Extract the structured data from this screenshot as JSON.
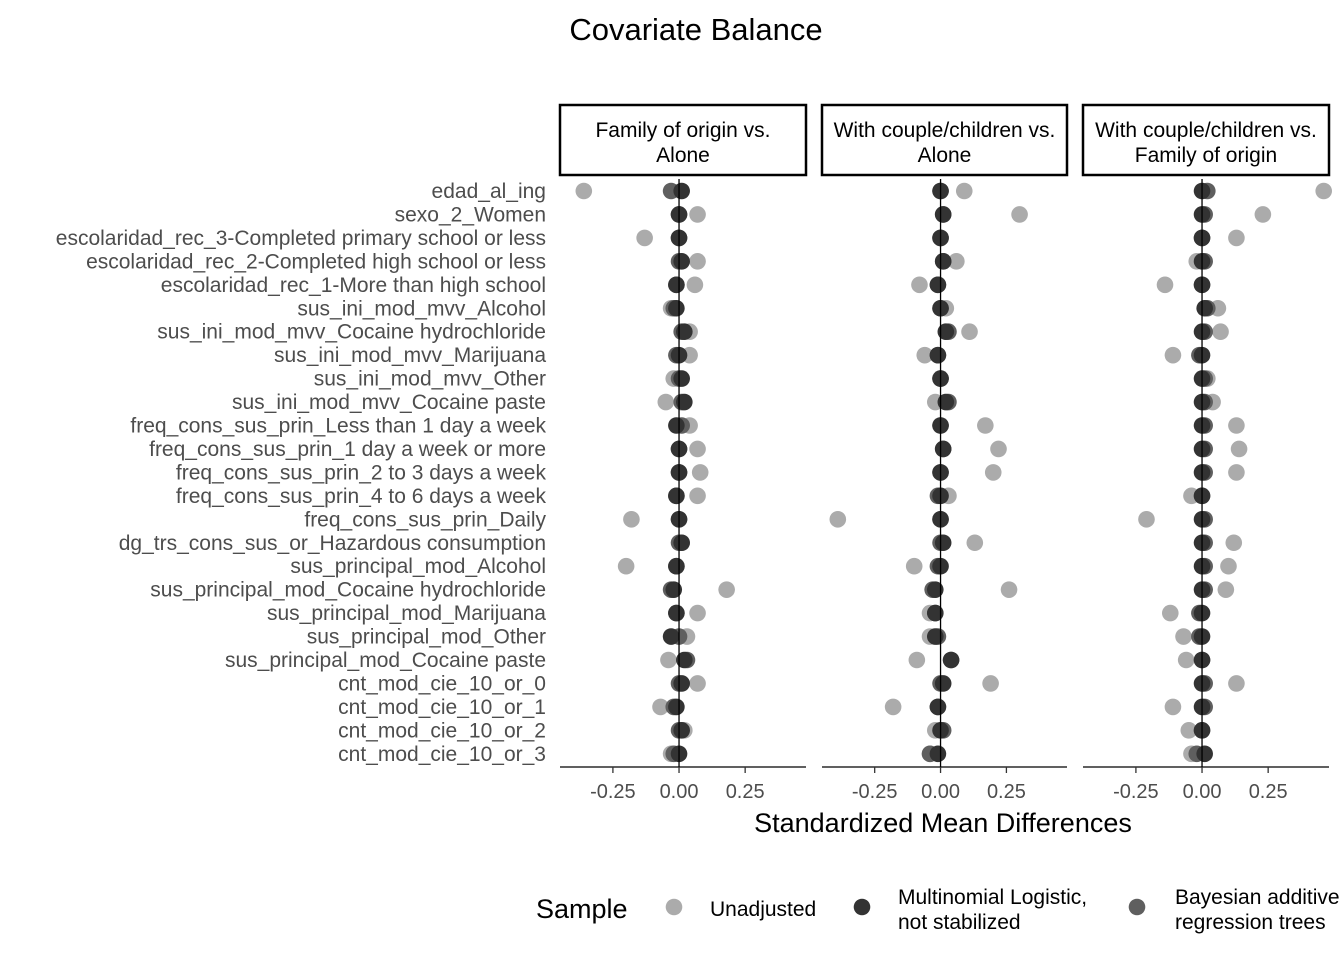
{
  "chart_data": {
    "type": "scatter",
    "title": "Covariate Balance",
    "xlabel": "Standardized Mean Differences",
    "xlim": [
      -0.45,
      0.48
    ],
    "xticks": [
      -0.25,
      0.0,
      0.25
    ],
    "xtick_labels": [
      "-0.25",
      "0.00",
      "0.25"
    ],
    "reference_line": 0,
    "grid": false,
    "legend_position": "bottom",
    "legend_title": "Sample",
    "colors": {
      "Unadjusted": "#ababab",
      "Multinomial Logistic, not stabilized": "#333333",
      "Bayesian additive regression trees": "#5f5f5f"
    },
    "covariates": [
      "edad_al_ing",
      "sexo_2_Women",
      "escolaridad_rec_3-Completed primary school or less",
      "escolaridad_rec_2-Completed high school or less",
      "escolaridad_rec_1-More than high school",
      "sus_ini_mod_mvv_Alcohol",
      "sus_ini_mod_mvv_Cocaine hydrochloride",
      "sus_ini_mod_mvv_Marijuana",
      "sus_ini_mod_mvv_Other",
      "sus_ini_mod_mvv_Cocaine paste",
      "freq_cons_sus_prin_Less than 1 day a week",
      "freq_cons_sus_prin_1 day a week or more",
      "freq_cons_sus_prin_2 to 3 days a week",
      "freq_cons_sus_prin_4 to 6 days a week",
      "freq_cons_sus_prin_Daily",
      "dg_trs_cons_sus_or_Hazardous consumption",
      "sus_principal_mod_Alcohol",
      "sus_principal_mod_Cocaine hydrochloride",
      "sus_principal_mod_Marijuana",
      "sus_principal_mod_Other",
      "sus_principal_mod_Cocaine paste",
      "cnt_mod_cie_10_or_0",
      "cnt_mod_cie_10_or_1",
      "cnt_mod_cie_10_or_2",
      "cnt_mod_cie_10_or_3"
    ],
    "facets": [
      {
        "label_line1": "Family of origin vs.",
        "label_line2": "Alone",
        "series": [
          {
            "name": "Unadjusted",
            "values": [
              -0.36,
              0.07,
              -0.13,
              0.07,
              0.06,
              -0.03,
              0.04,
              0.04,
              -0.02,
              -0.05,
              0.04,
              0.07,
              0.08,
              0.07,
              -0.18,
              0.01,
              -0.2,
              0.18,
              0.07,
              0.03,
              -0.04,
              0.07,
              -0.07,
              0.02,
              -0.03
            ]
          },
          {
            "name": "Multinomial Logistic, not stabilized",
            "values": [
              0.01,
              0.0,
              0.0,
              0.01,
              -0.01,
              -0.01,
              0.02,
              0.0,
              0.01,
              0.02,
              -0.01,
              0.0,
              0.0,
              -0.01,
              0.0,
              0.01,
              -0.01,
              -0.02,
              -0.01,
              -0.03,
              0.02,
              0.01,
              -0.01,
              0.01,
              0.0
            ]
          },
          {
            "name": "Bayesian additive regression trees",
            "values": [
              -0.03,
              0.0,
              0.0,
              0.0,
              -0.01,
              -0.02,
              0.01,
              -0.01,
              0.0,
              0.01,
              0.01,
              0.0,
              0.0,
              -0.01,
              0.0,
              0.0,
              -0.01,
              -0.03,
              -0.01,
              0.0,
              0.03,
              0.0,
              -0.02,
              0.0,
              -0.02
            ]
          }
        ]
      },
      {
        "label_line1": "With couple/children vs.",
        "label_line2": "Alone",
        "series": [
          {
            "name": "Unadjusted",
            "values": [
              0.09,
              0.3,
              0.0,
              0.06,
              -0.08,
              0.02,
              0.11,
              -0.06,
              0.0,
              -0.02,
              0.17,
              0.22,
              0.2,
              0.03,
              -0.39,
              0.13,
              -0.1,
              0.26,
              -0.04,
              -0.04,
              -0.09,
              0.19,
              -0.18,
              -0.02,
              -0.04
            ]
          },
          {
            "name": "Multinomial Logistic, not stabilized",
            "values": [
              0.0,
              0.01,
              0.0,
              0.01,
              -0.01,
              0.0,
              0.02,
              -0.01,
              0.0,
              0.02,
              0.0,
              0.01,
              0.0,
              0.0,
              0.0,
              0.01,
              0.0,
              -0.02,
              -0.02,
              -0.02,
              0.04,
              0.01,
              -0.01,
              0.0,
              -0.01
            ]
          },
          {
            "name": "Bayesian additive regression trees",
            "values": [
              0.0,
              0.01,
              0.0,
              0.01,
              -0.01,
              0.0,
              0.03,
              -0.01,
              0.0,
              0.03,
              0.0,
              0.01,
              0.0,
              -0.01,
              0.0,
              0.0,
              -0.01,
              -0.03,
              -0.02,
              -0.01,
              0.04,
              0.0,
              -0.01,
              0.01,
              -0.04
            ]
          }
        ]
      },
      {
        "label_line1": "With couple/children vs.",
        "label_line2": "Family of origin",
        "series": [
          {
            "name": "Unadjusted",
            "values": [
              0.46,
              0.23,
              0.13,
              -0.02,
              -0.14,
              0.06,
              0.07,
              -0.11,
              0.02,
              0.04,
              0.13,
              0.14,
              0.13,
              -0.04,
              -0.21,
              0.12,
              0.1,
              0.09,
              -0.12,
              -0.07,
              -0.06,
              0.13,
              -0.11,
              -0.05,
              -0.04
            ]
          },
          {
            "name": "Multinomial Logistic, not stabilized",
            "values": [
              0.0,
              0.0,
              0.0,
              0.0,
              0.0,
              0.01,
              0.0,
              0.0,
              0.0,
              0.0,
              0.0,
              0.0,
              0.0,
              0.0,
              0.0,
              0.0,
              0.0,
              0.0,
              0.0,
              0.0,
              0.0,
              0.0,
              0.0,
              0.0,
              0.01
            ]
          },
          {
            "name": "Bayesian additive regression trees",
            "values": [
              0.02,
              0.01,
              0.0,
              0.01,
              0.0,
              0.02,
              0.01,
              -0.01,
              0.01,
              0.01,
              0.01,
              0.01,
              0.01,
              0.0,
              0.01,
              0.01,
              0.01,
              0.01,
              -0.01,
              -0.01,
              0.0,
              0.01,
              0.01,
              0.0,
              -0.02
            ]
          }
        ]
      }
    ],
    "legend": [
      {
        "name": "Unadjusted",
        "line1": "Unadjusted",
        "line2": ""
      },
      {
        "name": "Multinomial Logistic, not stabilized",
        "line1": "Multinomial Logistic,",
        "line2": "not stabilized"
      },
      {
        "name": "Bayesian additive regression trees",
        "line1": "Bayesian additive",
        "line2": "regression trees"
      }
    ]
  }
}
